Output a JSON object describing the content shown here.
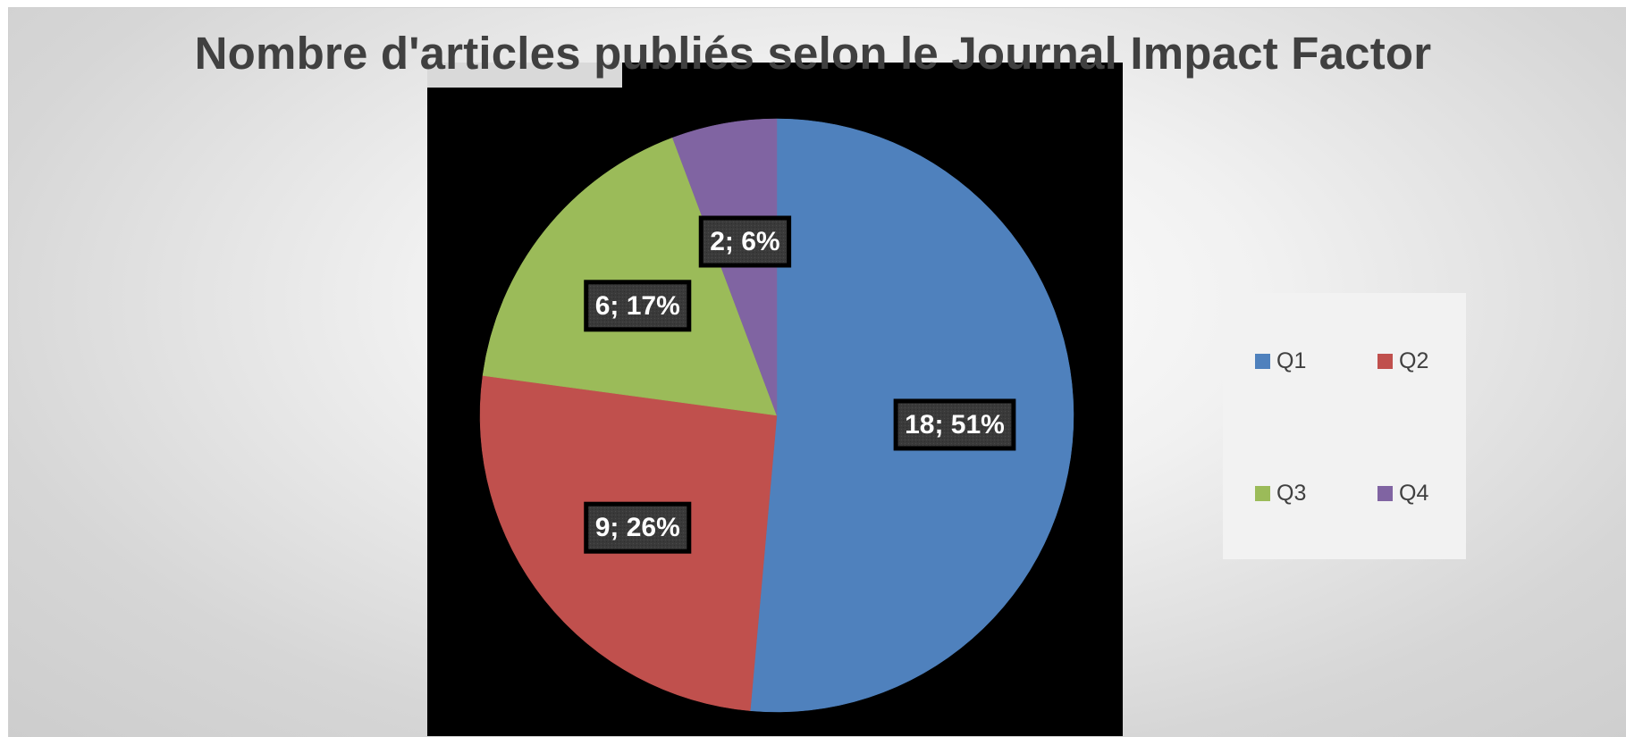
{
  "chart_data": {
    "type": "pie",
    "title": "Nombre d'articles publiés selon le Journal Impact Factor",
    "categories": [
      "Q1",
      "Q2",
      "Q3",
      "Q4"
    ],
    "values": [
      18,
      9,
      6,
      2
    ],
    "percentages": [
      51,
      26,
      17,
      6
    ],
    "data_labels": [
      "18; 51%",
      "9; 26%",
      "6; 17%",
      "2; 6%"
    ],
    "colors": [
      "#4f81bd",
      "#c0504d",
      "#9bbb59",
      "#8064a2"
    ],
    "start_angle_deg": 0,
    "direction": "clockwise",
    "legend_position": "right"
  }
}
